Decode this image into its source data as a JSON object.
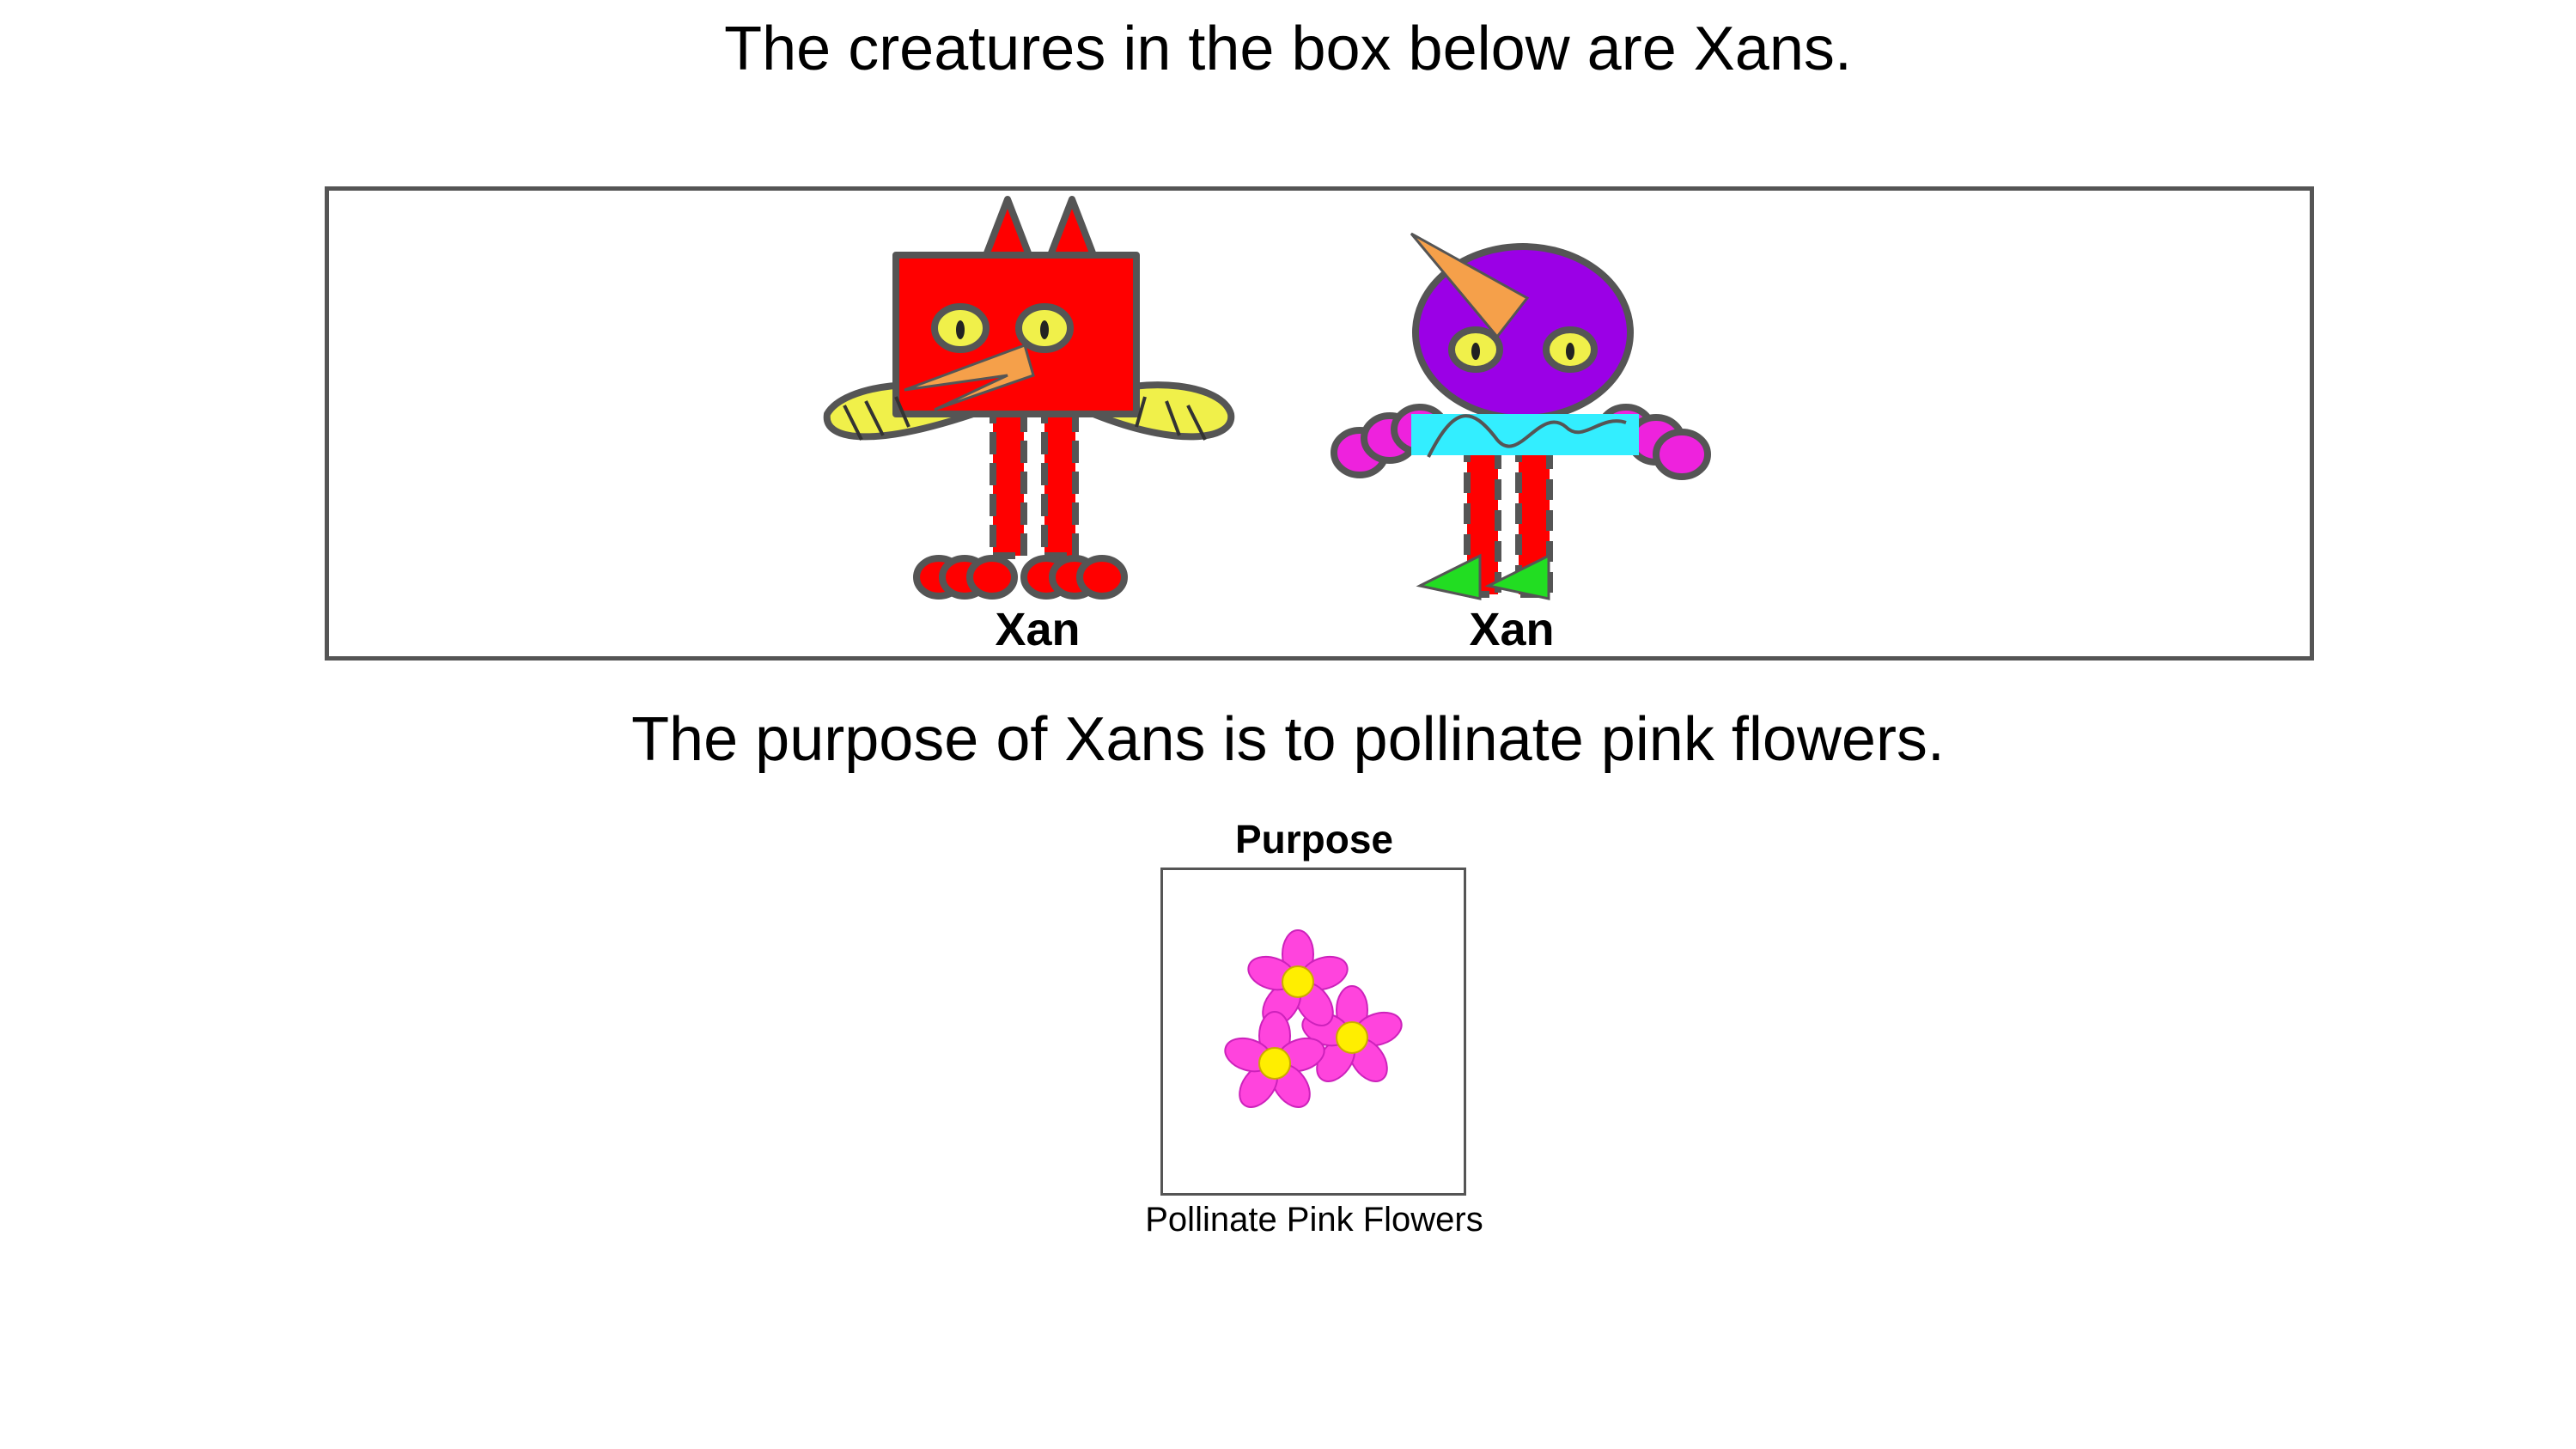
{
  "intro_text": "The creatures in the box below are Xans.",
  "creatures": [
    {
      "label": "Xan",
      "icon": "red-box-creature-icon"
    },
    {
      "label": "Xan",
      "icon": "purple-creature-icon"
    }
  ],
  "purpose_statement": "The purpose of Xans is to pollinate pink flowers.",
  "purpose": {
    "title": "Purpose",
    "icon": "pink-flowers-icon",
    "caption": "Pollinate Pink Flowers"
  },
  "colors": {
    "outline": "#555555",
    "red": "#ff0000",
    "yellow": "#f0f04a",
    "orange": "#f5a04a",
    "purple": "#9b00e6",
    "cyan": "#33eeff",
    "magenta": "#ee22dd",
    "green": "#22dd22",
    "pink": "#ff44dd"
  }
}
